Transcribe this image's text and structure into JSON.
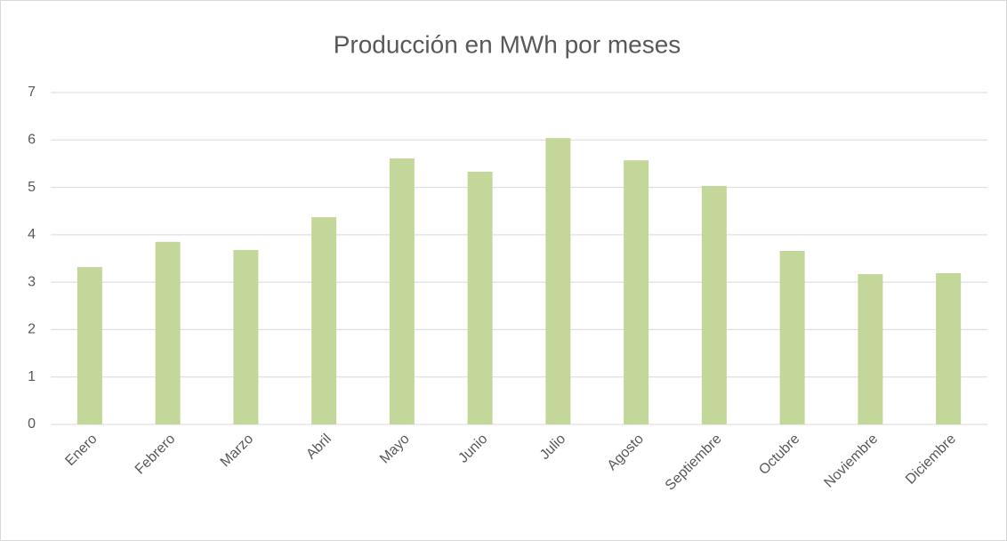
{
  "chart_data": {
    "type": "bar",
    "title": "Producción en MWh por meses",
    "categories": [
      "Enero",
      "Febrero",
      "Marzo",
      "Abril",
      "Mayo",
      "Junio",
      "Julio",
      "Agosto",
      "Septiembre",
      "Octubre",
      "Noviembre",
      "Diciembre"
    ],
    "values": [
      3.32,
      3.85,
      3.68,
      4.37,
      5.61,
      5.33,
      6.04,
      5.57,
      5.03,
      3.66,
      3.17,
      3.19
    ],
    "color": "#c4d79b",
    "ylim": [
      0,
      7
    ],
    "yticks": [
      0,
      1,
      2,
      3,
      4,
      5,
      6,
      7
    ],
    "grid": true
  }
}
